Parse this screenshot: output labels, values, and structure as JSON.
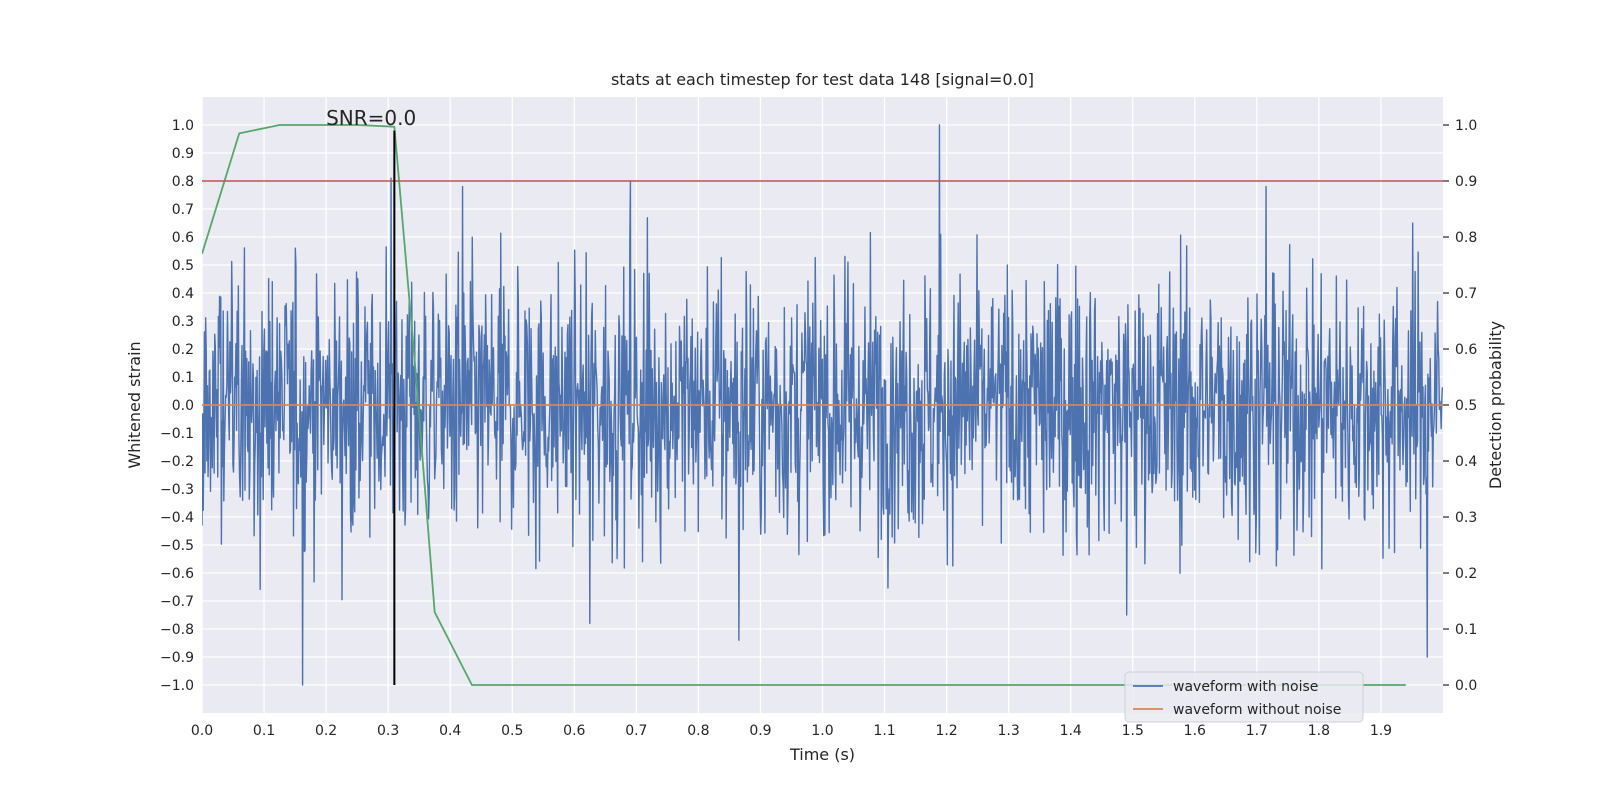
{
  "chart_data": {
    "type": "line",
    "title": "stats at each timestep for test data 148 [signal=0.0]",
    "xlabel": "Time (s)",
    "ylabel": "Whitened strain",
    "y2label": "Detection probability",
    "xlim": [
      0.0,
      2.0
    ],
    "ylim": [
      -1.1,
      1.1
    ],
    "y2lim": [
      -0.05,
      1.05
    ],
    "grid": true,
    "legend_position": "lower-right",
    "xticks": [
      "0.0",
      "0.1",
      "0.2",
      "0.3",
      "0.4",
      "0.5",
      "0.6",
      "0.7",
      "0.8",
      "0.9",
      "1.0",
      "1.1",
      "1.2",
      "1.3",
      "1.4",
      "1.5",
      "1.6",
      "1.7",
      "1.8",
      "1.9"
    ],
    "yticks": [
      "−1.0",
      "−0.9",
      "−0.8",
      "−0.7",
      "−0.6",
      "−0.5",
      "−0.4",
      "−0.3",
      "−0.2",
      "−0.1",
      "0.0",
      "0.1",
      "0.2",
      "0.3",
      "0.4",
      "0.5",
      "0.6",
      "0.7",
      "0.8",
      "0.9",
      "1.0"
    ],
    "y2ticks": [
      "0.0",
      "0.1",
      "0.2",
      "0.3",
      "0.4",
      "0.5",
      "0.6",
      "0.7",
      "0.8",
      "0.9",
      "1.0"
    ],
    "annotation": {
      "text": "SNR=0.0",
      "x": 0.2,
      "y": 1.0
    },
    "series": [
      {
        "name": "waveform with noise",
        "color": "#4c72b0",
        "axis": "left",
        "kind": "noise",
        "sample_count": 2048,
        "amplitude_range": [
          -1.0,
          1.0
        ],
        "peaks": [
          {
            "x": 0.162,
            "y": -1.0
          },
          {
            "x": 1.188,
            "y": 1.0
          },
          {
            "x": 0.305,
            "y": 0.81
          },
          {
            "x": 0.69,
            "y": 0.8
          },
          {
            "x": 0.42,
            "y": 0.78
          },
          {
            "x": 1.715,
            "y": 0.78
          },
          {
            "x": 0.865,
            "y": -0.84
          },
          {
            "x": 1.975,
            "y": -0.9
          },
          {
            "x": 0.625,
            "y": -0.78
          },
          {
            "x": 1.49,
            "y": -0.75
          }
        ]
      },
      {
        "name": "waveform without noise",
        "color": "#dd8452",
        "axis": "left",
        "x": [
          0.0,
          2.0
        ],
        "y": [
          0.0,
          0.0
        ]
      },
      {
        "name": "",
        "color": "#55a868",
        "axis": "right",
        "x": [
          0.0,
          0.06,
          0.125,
          0.19,
          0.25,
          0.31,
          0.345,
          0.375,
          0.435,
          0.5,
          1.0,
          1.5,
          1.94
        ],
        "y": [
          0.77,
          0.985,
          1.0,
          1.0,
          1.0,
          0.997,
          0.55,
          0.13,
          0.0,
          0.0,
          0.0,
          0.0,
          0.0
        ]
      }
    ],
    "reference_lines": [
      {
        "orientation": "horizontal",
        "axis": "left",
        "value": 0.8,
        "color": "#c44e52"
      },
      {
        "orientation": "vertical",
        "value": 0.31,
        "from": -1.0,
        "to": 0.98,
        "color": "#000000"
      }
    ]
  }
}
